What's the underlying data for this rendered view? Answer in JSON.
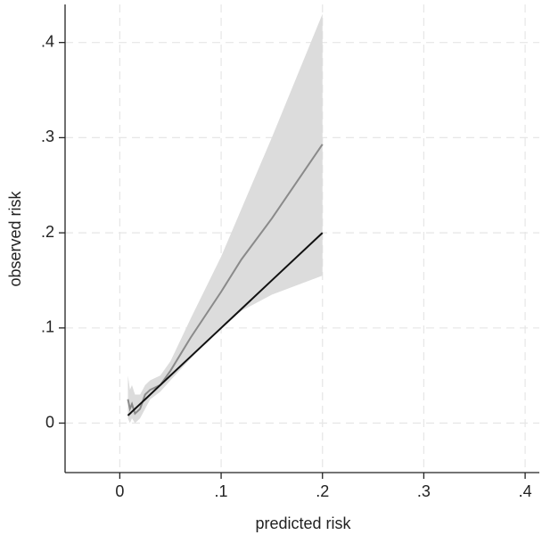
{
  "chart_data": {
    "type": "line",
    "x_label": "predicted risk",
    "y_label": "observed risk",
    "xlim": [
      -0.054,
      0.414
    ],
    "ylim": [
      -0.052,
      0.44
    ],
    "xticks": [
      0,
      {
        "value": 0.1,
        "label": ".1"
      },
      {
        "value": 0.2,
        "label": ".2"
      },
      {
        "value": 0.3,
        "label": ".3"
      },
      {
        "value": 0.4,
        "label": ".4"
      }
    ],
    "yticks": [
      0,
      {
        "value": 0.1,
        "label": ".1"
      },
      {
        "value": 0.2,
        "label": ".2"
      },
      {
        "value": 0.3,
        "label": ".3"
      },
      {
        "value": 0.4,
        "label": ".4"
      }
    ],
    "grid": true,
    "x": [
      0.008,
      0.01,
      0.012,
      0.015,
      0.02,
      0.025,
      0.03,
      0.04,
      0.05,
      0.07,
      0.1,
      0.12,
      0.15,
      0.2
    ],
    "band": {
      "color": "#dcdcdc",
      "lower": [
        0.005,
        0,
        0.005,
        0,
        0.005,
        0.015,
        0.025,
        0.033,
        0.045,
        0.068,
        0.1,
        0.118,
        0.135,
        0.155
      ],
      "upper": [
        0.05,
        0.035,
        0.04,
        0.03,
        0.03,
        0.04,
        0.045,
        0.05,
        0.065,
        0.11,
        0.175,
        0.225,
        0.3,
        0.43
      ]
    },
    "series": [
      {
        "color": "#8a8a8a",
        "values": [
          0.025,
          0.015,
          0.02,
          0.01,
          0.015,
          0.03,
          0.035,
          0.04,
          0.055,
          0.09,
          0.138,
          0.172,
          0.215,
          0.293
        ]
      },
      {
        "color": "#111111",
        "values": [
          0.008,
          0.01,
          0.012,
          0.015,
          0.02,
          0.025,
          0.03,
          0.04,
          0.05,
          0.07,
          0.1,
          0.12,
          0.15,
          0.2
        ]
      }
    ]
  }
}
